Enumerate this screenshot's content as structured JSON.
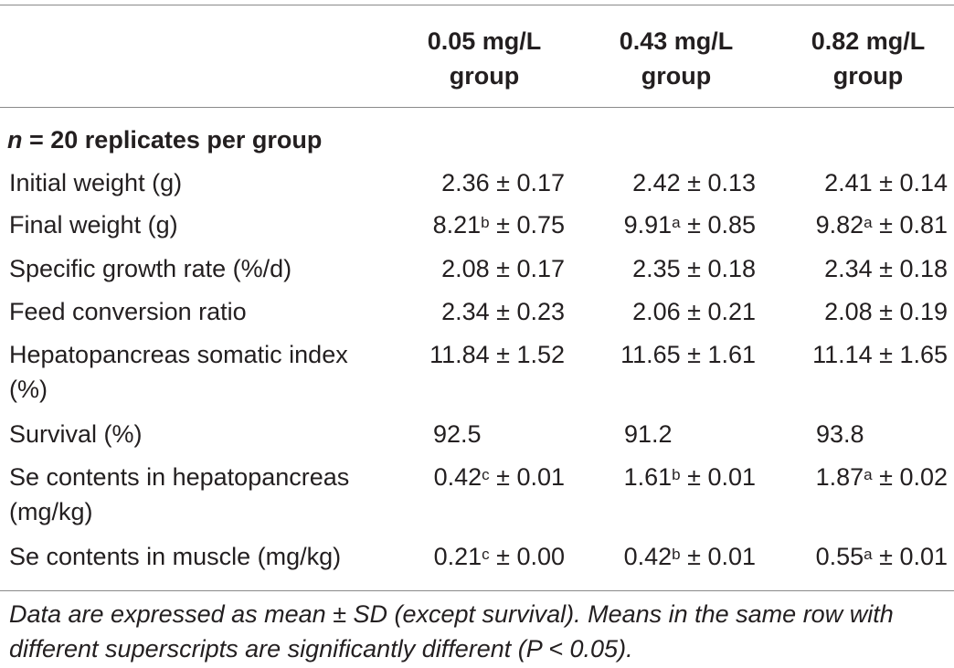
{
  "headers": {
    "col1_line1": "0.05 mg/L",
    "col1_line2": "group",
    "col2_line1": "0.43 mg/L",
    "col2_line2": "group",
    "col3_line1": "0.82 mg/L",
    "col3_line2": "group"
  },
  "section": {
    "n_symbol": "n",
    "text": " = 20 replicates per group"
  },
  "rows": [
    {
      "label": "Initial weight (g)",
      "c1": {
        "v": "2.36",
        "sup": "",
        "sd": " ± 0.17"
      },
      "c2": {
        "v": "2.42",
        "sup": "",
        "sd": " ± 0.13"
      },
      "c3": {
        "v": "2.41",
        "sup": "",
        "sd": " ± 0.14"
      }
    },
    {
      "label": "Final weight (g)",
      "c1": {
        "v": "8.21",
        "sup": "b",
        "sd": " ± 0.75"
      },
      "c2": {
        "v": "9.91",
        "sup": "a",
        "sd": " ± 0.85"
      },
      "c3": {
        "v": "9.82",
        "sup": "a",
        "sd": " ± 0.81"
      }
    },
    {
      "label": "Specific growth rate (%/d)",
      "c1": {
        "v": "2.08",
        "sup": "",
        "sd": " ± 0.17"
      },
      "c2": {
        "v": "2.35",
        "sup": "",
        "sd": " ± 0.18"
      },
      "c3": {
        "v": "2.34",
        "sup": "",
        "sd": " ± 0.18"
      }
    },
    {
      "label": "Feed conversion ratio",
      "c1": {
        "v": "2.34",
        "sup": "",
        "sd": " ± 0.23"
      },
      "c2": {
        "v": "2.06",
        "sup": "",
        "sd": " ± 0.21"
      },
      "c3": {
        "v": "2.08",
        "sup": "",
        "sd": " ± 0.19"
      }
    },
    {
      "label_line1": "Hepatopancreas somatic index",
      "label_line2": "(%)",
      "c1": {
        "v": "11.84",
        "sup": "",
        "sd": " ± 1.52"
      },
      "c2": {
        "v": "11.65",
        "sup": "",
        "sd": " ± 1.61"
      },
      "c3": {
        "v": "11.14",
        "sup": "",
        "sd": " ± 1.65"
      }
    },
    {
      "label": "Survival (%)",
      "c1": {
        "v": "92.5"
      },
      "c2": {
        "v": "91.2"
      },
      "c3": {
        "v": "93.8"
      }
    },
    {
      "label_line1": "Se contents in hepatopancreas",
      "label_line2": "(mg/kg)",
      "c1": {
        "v": "0.42",
        "sup": "c",
        "sd": " ± 0.01"
      },
      "c2": {
        "v": "1.61",
        "sup": "b",
        "sd": " ± 0.01"
      },
      "c3": {
        "v": "1.87",
        "sup": "a",
        "sd": " ± 0.02"
      }
    },
    {
      "label": "Se contents in muscle (mg/kg)",
      "c1": {
        "v": "0.21",
        "sup": "c",
        "sd": " ± 0.00"
      },
      "c2": {
        "v": "0.42",
        "sup": "b",
        "sd": " ± 0.01"
      },
      "c3": {
        "v": "0.55",
        "sup": "a",
        "sd": " ± 0.01"
      }
    }
  ],
  "footnote": {
    "line1": "Data are expressed as mean ± SD (except survival). Means in the same row with",
    "line2": "different superscripts are significantly different (P < 0.05)."
  }
}
